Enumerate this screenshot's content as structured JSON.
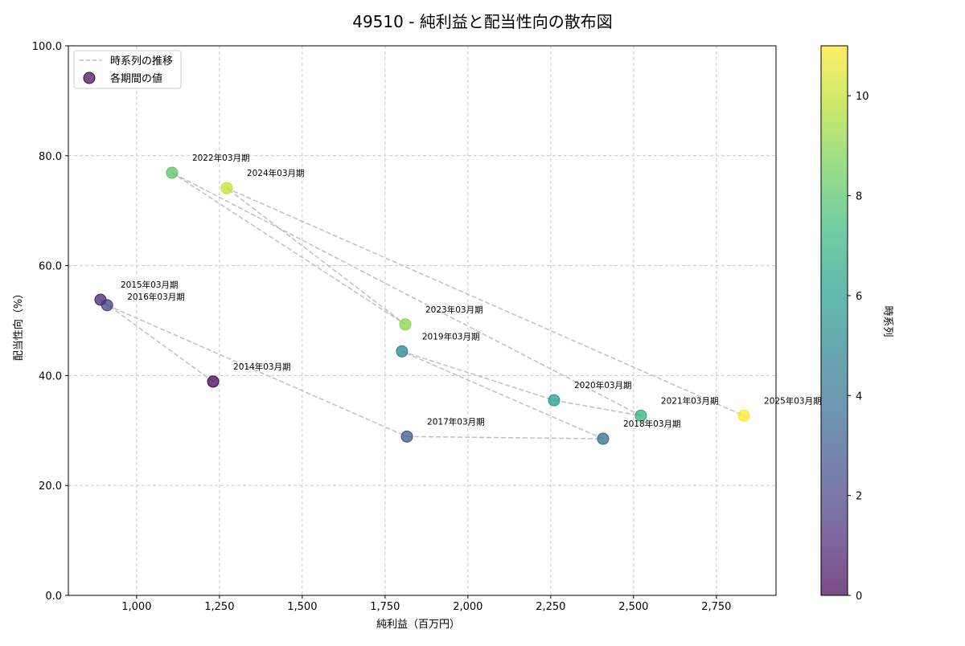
{
  "chart_data": {
    "type": "scatter",
    "title": "49510 - 純利益と配当性向の散布図",
    "xlabel": "純利益（百万円）",
    "ylabel": "配当性向（%）",
    "xlim": [
      794,
      2930
    ],
    "ylim": [
      0,
      100
    ],
    "xticks": [
      1000,
      1250,
      1500,
      1750,
      2000,
      2250,
      2500,
      2750
    ],
    "xtick_labels": [
      "1,000",
      "1,250",
      "1,500",
      "1,750",
      "2,000",
      "2,250",
      "2,500",
      "2,750"
    ],
    "yticks": [
      0,
      20,
      40,
      60,
      80,
      100
    ],
    "ytick_labels": [
      "0.0",
      "20.0",
      "40.0",
      "60.0",
      "80.0",
      "100.0"
    ],
    "grid": true,
    "legend": {
      "placement": "top-left",
      "entries": [
        "時系列の推移",
        "各期間の値"
      ]
    },
    "colorbar": {
      "label": "時系列",
      "range": [
        0,
        11
      ],
      "ticks": [
        0,
        2,
        4,
        6,
        8,
        10
      ],
      "tick_labels": [
        "0",
        "2",
        "4",
        "6",
        "8",
        "10"
      ],
      "colormap": [
        "#440154",
        "#482878",
        "#3e4989",
        "#31688e",
        "#26828e",
        "#1f9e89",
        "#35b779",
        "#6ece58",
        "#b5de2b",
        "#fde725"
      ]
    },
    "line_color": "#bfbfbf",
    "points": [
      {
        "label": "2014年03月期",
        "x": 1231,
        "y": 38.9,
        "t": 0
      },
      {
        "label": "2015年03月期",
        "x": 891,
        "y": 53.8,
        "t": 1
      },
      {
        "label": "2016年03月期",
        "x": 911,
        "y": 52.8,
        "t": 2
      },
      {
        "label": "2017年03月期",
        "x": 1816,
        "y": 28.9,
        "t": 3
      },
      {
        "label": "2018年03月期",
        "x": 2408,
        "y": 28.5,
        "t": 4
      },
      {
        "label": "2019年03月期",
        "x": 1801,
        "y": 44.4,
        "t": 5
      },
      {
        "label": "2020年03月期",
        "x": 2260,
        "y": 35.5,
        "t": 6
      },
      {
        "label": "2021年03月期",
        "x": 2522,
        "y": 32.7,
        "t": 7
      },
      {
        "label": "2022年03月期",
        "x": 1107,
        "y": 76.9,
        "t": 8
      },
      {
        "label": "2023年03月期",
        "x": 1811,
        "y": 49.3,
        "t": 9
      },
      {
        "label": "2024年03月期",
        "x": 1272,
        "y": 74.1,
        "t": 10
      },
      {
        "label": "2025年03月期",
        "x": 2833,
        "y": 32.7,
        "t": 11
      }
    ]
  }
}
